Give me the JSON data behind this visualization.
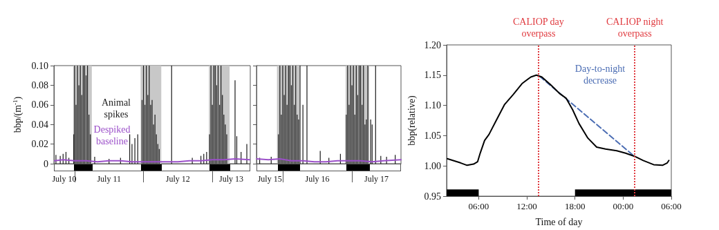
{
  "chart_data": [
    {
      "type": "bar",
      "ylabel": "bbp/(m$^{-1}$)",
      "xlim": [
        "--07-10T16:48",
        "--07-13T13:12"
      ],
      "xticks": [
        {
          "value": "--07-10T20:24",
          "label": "July 10"
        },
        {
          "value": "--07-11T00:00",
          "label": null
        },
        {
          "value": "--07-11T12:00",
          "label": "July 11"
        },
        {
          "value": "--07-12T00:00",
          "label": null
        },
        {
          "value": "--07-12T12:00",
          "label": "July 12"
        },
        {
          "value": "--07-13T00:00",
          "label": null
        },
        {
          "value": "--07-13T06:36",
          "label": "July 13"
        }
      ],
      "ylim": [
        0,
        0.1
      ],
      "yticks": [
        0,
        0.02,
        0.04,
        0.06,
        0.08,
        {
          "value": 0.1,
          "label": "0.10"
        }
      ],
      "marker": "none",
      "series": [
        {
          "color": "#1a1a1a",
          "x": [
            "--07-10T17:30",
            "--07-10T19:00",
            "--07-10T20:00",
            "--07-10T21:00",
            "--07-10T22:00",
            "--07-10T23:42",
            "--07-11T00:00",
            "--07-11T00:30",
            "--07-11T01:00",
            "--07-11T01:30",
            "--07-11T02:00",
            "--07-11T02:30",
            "--07-11T03:00",
            "--07-11T03:30",
            "--07-11T04:00",
            "--07-11T04:30",
            "--07-11T05:00",
            "--07-11T05:30",
            "--07-11T07:00",
            "--07-11T12:00",
            "--07-11T16:00",
            "--07-11T19:12",
            "--07-11T20:00",
            "--07-11T21:00",
            "--07-11T22:00",
            "--07-11T23:30",
            "--07-12T00:00",
            "--07-12T00:30",
            "--07-12T01:00",
            "--07-12T01:30",
            "--07-12T02:00",
            "--07-12T02:30",
            "--07-12T03:00",
            "--07-12T03:30",
            "--07-12T04:00",
            "--07-12T04:30",
            "--07-12T05:00",
            "--07-12T05:30",
            "--07-12T09:48",
            "--07-12T17:00",
            "--07-12T20:00",
            "--07-12T21:00",
            "--07-12T22:00",
            "--07-12T23:00",
            "--07-12T23:30",
            "--07-13T00:00",
            "--07-13T00:30",
            "--07-13T01:00",
            "--07-13T01:30",
            "--07-13T02:00",
            "--07-13T02:30",
            "--07-13T03:00",
            "--07-13T03:30",
            "--07-13T04:00",
            "--07-13T04:30",
            "--07-13T05:00",
            "--07-13T07:54",
            "--07-13T08:30",
            "--07-13T10:00",
            "--07-13T12:00"
          ],
          "values": [
            0.009,
            0.008,
            0.01,
            0.012,
            0.006,
            0.03,
            0.1,
            0.06,
            0.1,
            0.08,
            0.1,
            0.07,
            0.1,
            0.1,
            0.09,
            0.1,
            0.05,
            0.03,
            0.007,
            0.005,
            0.006,
            0.03,
            0.02,
            0.026,
            0.03,
            0.065,
            0.1,
            0.06,
            0.1,
            0.07,
            0.1,
            0.06,
            0.065,
            0.04,
            0.05,
            0.03,
            0.02,
            0.015,
            0.1,
            0.006,
            0.008,
            0.01,
            0.012,
            0.03,
            0.1,
            0.06,
            0.1,
            0.1,
            0.08,
            0.1,
            0.06,
            0.1,
            0.07,
            0.05,
            0.04,
            0.03,
            0.085,
            0.028,
            0.012,
            0.02
          ]
        },
        {
          "type": "line",
          "color": "#9b4fc9",
          "x": [
            "--07-10T17:00",
            "--07-10T20:00",
            "--07-11T00:00",
            "--07-11T04:00",
            "--07-11T08:00",
            "--07-11T12:00",
            "--07-11T16:00",
            "--07-11T20:00",
            "--07-12T00:00",
            "--07-12T04:00",
            "--07-12T08:00",
            "--07-12T12:00",
            "--07-12T16:00",
            "--07-12T20:00",
            "--07-13T00:00",
            "--07-13T04:00",
            "--07-13T08:00",
            "--07-13T13:00"
          ],
          "values": [
            0.003,
            0.004,
            0.003,
            0.003,
            0.002,
            0.003,
            0.003,
            0.002,
            0.002,
            0.002,
            0.002,
            0.002,
            0.003,
            0.003,
            0.004,
            0.004,
            0.005,
            0.004
          ]
        }
      ],
      "bands": [
        {
          "axis": "x",
          "from": "--07-10T23:30",
          "to": "--07-11T06:00",
          "color": "#c8c8c8"
        },
        {
          "axis": "x",
          "from": "--07-11T23:00",
          "to": "--07-12T06:12",
          "color": "#c8c8c8"
        },
        {
          "axis": "x",
          "from": "--07-12T22:48",
          "to": "--07-13T06:00",
          "color": "#c8c8c8"
        }
      ],
      "annotations": [
        "Animal\nspikes",
        "Despiked\nbaseline"
      ]
    },
    {
      "type": "bar",
      "tick_labels": "x",
      "xlim": [
        "--07-15T14:54",
        "--07-17T17:00"
      ],
      "xticks": [
        {
          "value": "--07-15T19:30",
          "label": "July 15"
        },
        {
          "value": "--07-16T00:00",
          "label": null
        },
        {
          "value": "--07-16T12:00",
          "label": "July 16"
        },
        {
          "value": "--07-17T00:00",
          "label": null
        },
        {
          "value": "--07-17T08:30",
          "label": "July 17"
        }
      ],
      "ylim": [
        0,
        0.1
      ],
      "yticks": [
        0,
        0.02,
        0.04,
        0.06,
        0.08,
        0.1
      ],
      "marker": "none",
      "series": [
        {
          "color": "#1a1a1a",
          "x": [
            "--07-15T16:00",
            "--07-15T20:00",
            "--07-15T22:30",
            "--07-15T23:00",
            "--07-15T23:30",
            "--07-16T00:00",
            "--07-16T00:30",
            "--07-16T01:00",
            "--07-16T01:30",
            "--07-16T02:00",
            "--07-16T02:30",
            "--07-16T03:00",
            "--07-16T03:30",
            "--07-16T04:00",
            "--07-16T04:30",
            "--07-16T05:00",
            "--07-16T05:30",
            "--07-16T06:00",
            "--07-16T07:00",
            "--07-16T08:24",
            "--07-16T13:00",
            "--07-16T16:00",
            "--07-16T20:00",
            "--07-16T22:00",
            "--07-16T22:30",
            "--07-16T23:00",
            "--07-16T23:30",
            "--07-17T00:00",
            "--07-17T00:30",
            "--07-17T01:00",
            "--07-17T01:30",
            "--07-17T02:00",
            "--07-17T02:30",
            "--07-17T03:00",
            "--07-17T03:30",
            "--07-17T04:00",
            "--07-17T04:30",
            "--07-17T05:00",
            "--07-17T05:30",
            "--07-17T06:30",
            "--07-17T07:00",
            "--07-17T08:12",
            "--07-17T10:00",
            "--07-17T12:00",
            "--07-17T15:00"
          ],
          "values": [
            0.006,
            0.007,
            0.03,
            0.1,
            0.05,
            0.1,
            0.07,
            0.1,
            0.06,
            0.1,
            0.1,
            0.08,
            0.1,
            0.06,
            0.1,
            0.05,
            0.045,
            0.1,
            0.06,
            0.1,
            0.013,
            0.006,
            0.01,
            0.05,
            0.1,
            0.06,
            0.1,
            0.08,
            0.1,
            0.05,
            0.1,
            0.07,
            0.1,
            0.1,
            0.06,
            0.1,
            0.04,
            0.045,
            0.1,
            0.045,
            0.04,
            0.1,
            0.008,
            0.007,
            0.009
          ]
        },
        {
          "type": "line",
          "color": "#9b4fc9",
          "x": [
            "--07-15T15:00",
            "--07-15T19:00",
            "--07-15T23:00",
            "--07-16T03:00",
            "--07-16T07:00",
            "--07-16T11:00",
            "--07-16T15:00",
            "--07-16T19:00",
            "--07-16T23:00",
            "--07-17T03:00",
            "--07-17T07:00",
            "--07-17T11:00",
            "--07-17T17:00"
          ],
          "values": [
            0.005,
            0.004,
            0.005,
            0.003,
            0.003,
            0.002,
            0.002,
            0.003,
            0.003,
            0.003,
            0.002,
            0.003,
            0.004
          ]
        }
      ],
      "bands": [
        {
          "axis": "x",
          "from": "--07-15T22:00",
          "to": "--07-16T05:48",
          "color": "#c8c8c8"
        },
        {
          "axis": "x",
          "from": "--07-16T21:48",
          "to": "--07-17T06:00",
          "color": "#c8c8c8"
        }
      ]
    },
    {
      "type": "line",
      "xlabel": "Time of day",
      "ylabel": "bbp(relative)",
      "xlim": [
        "--01-01T02:00",
        "--01-02T06:00"
      ],
      "xticks": [
        {
          "value": "--01-01T06:00",
          "label": "06:00"
        },
        {
          "value": "--01-01T12:00",
          "label": "12:00"
        },
        {
          "value": "--01-01T18:00",
          "label": "18:00"
        },
        {
          "value": "--01-02T00:00",
          "label": "00:00"
        },
        {
          "value": "--01-02T06:00",
          "label": "06:00"
        }
      ],
      "ylim": [
        0.95,
        1.2
      ],
      "yticks": [
        0.95,
        {
          "value": 1,
          "label": "1.00"
        },
        1.05,
        {
          "value": 1.1,
          "label": "1.10"
        },
        1.15,
        {
          "value": 1.2,
          "label": "1.20"
        }
      ],
      "marker": "none",
      "series": [
        {
          "color": "#4a6cb3",
          "line_style": "dashed",
          "x": [
            "--01-01T13:36",
            "--01-02T01:18"
          ],
          "values": [
            1.148,
            1.017
          ]
        },
        {
          "color": "#000000",
          "x": [
            "--01-01T02:05",
            "--01-01T03:44",
            "--01-01T04:33",
            "--01-01T05:22",
            "--01-01T05:52",
            "--01-01T06:11",
            "--01-01T06:44",
            "--01-01T07:17",
            "--01-01T08:06",
            "--01-01T09:12",
            "--01-01T10:18",
            "--01-01T11:24",
            "--01-01T12:30",
            "--01-01T13:11",
            "--01-01T13:52",
            "--01-01T14:58",
            "--01-01T16:03",
            "--01-01T16:53",
            "--01-01T17:42",
            "--01-01T18:30",
            "--01-01T19:36",
            "--01-01T20:42",
            "--01-01T21:48",
            "--01-01T23:12",
            "--01-02T00:18",
            "--01-02T01:24",
            "--01-02T02:30",
            "--01-02T03:48",
            "--01-02T04:54",
            "--01-02T05:30",
            "--01-02T05:42"
          ],
          "values": [
            1.012,
            1.005,
            1.001,
            1.003,
            1.007,
            1.021,
            1.042,
            1.052,
            1.073,
            1.101,
            1.118,
            1.136,
            1.147,
            1.15,
            1.147,
            1.134,
            1.12,
            1.112,
            1.093,
            1.07,
            1.046,
            1.031,
            1.028,
            1.025,
            1.021,
            1.016,
            1.009,
            1.002,
            1.001,
            1.005,
            1.009
          ]
        }
      ],
      "ref_lines": [
        {
          "axis": "x",
          "value": "--01-01T13:27",
          "label": "CALIOP day\noverpass",
          "color": "#e0393e",
          "line_style": "dotted"
        },
        {
          "axis": "x",
          "value": "--01-02T01:27",
          "label": "CALIOP night\noverpass",
          "color": "#e0393e",
          "line_style": "dotted"
        }
      ],
      "bands": [
        {
          "axis": "x",
          "from": "--01-01T02:00",
          "to": "--01-01T06:00",
          "color": "#000000"
        },
        {
          "axis": "x",
          "from": "--01-01T18:00",
          "to": "--01-02T06:00",
          "color": "#000000"
        }
      ],
      "annotations": [
        "Day-to-night\ndecrease"
      ]
    }
  ]
}
